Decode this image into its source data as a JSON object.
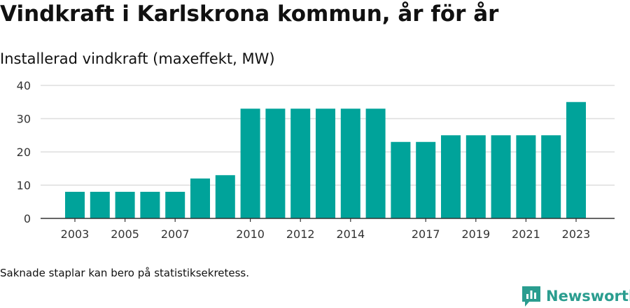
{
  "title": "Vindkraft i Karlskrona kommun, år för år",
  "subtitle": "Installerad vindkraft (maxeffekt, MW)",
  "footnote": "Saknade staplar kan bero på statistiksekretess.",
  "brand": {
    "name": "Newsworthy",
    "icon": "newsworthy-logo-icon",
    "color": "#2a9d8f"
  },
  "chart_data": {
    "type": "bar",
    "title": "Installerad vindkraft (maxeffekt, MW)",
    "xlabel": "",
    "ylabel": "",
    "categories": [
      "2003",
      "2004",
      "2005",
      "2006",
      "2007",
      "2008",
      "2009",
      "2010",
      "2011",
      "2012",
      "2013",
      "2014",
      "2015",
      "2016",
      "2017",
      "2018",
      "2019",
      "2020",
      "2021",
      "2022",
      "2023"
    ],
    "values": [
      8,
      8,
      8,
      8,
      8,
      12,
      13,
      33,
      33,
      33,
      33,
      33,
      33,
      23,
      23,
      25,
      25,
      25,
      25,
      25,
      35
    ],
    "x_tick_labels": [
      "2003",
      "2005",
      "2007",
      "2010",
      "2012",
      "2014",
      "2017",
      "2019",
      "2021",
      "2023"
    ],
    "y_ticks": [
      0,
      10,
      20,
      30,
      40
    ],
    "ylim": [
      0,
      40
    ],
    "grid": true,
    "legend": "none",
    "bar_color": "#00a39a"
  }
}
